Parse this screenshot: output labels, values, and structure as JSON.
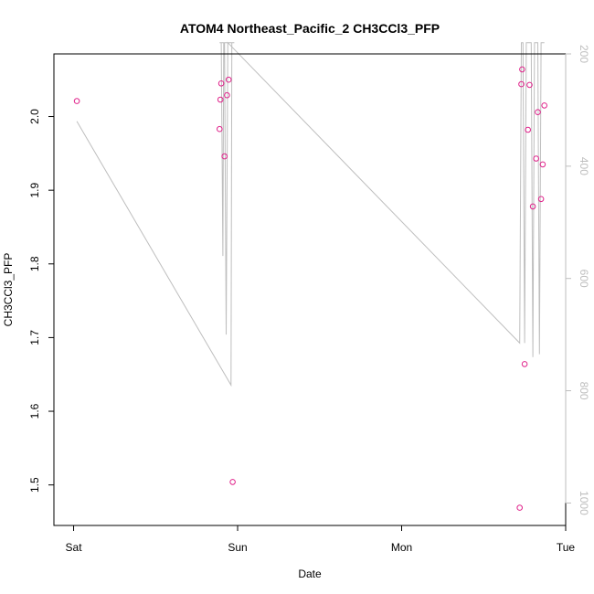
{
  "chart_data": {
    "type": "scatter",
    "title": "ATOM4 Northeast_Pacific_2 CH3CCl3_PFP",
    "xlabel": "Date",
    "ylabel": "CH3CCl3_PFP",
    "x_axis": {
      "ticks": [
        {
          "value": 0,
          "label": "Sat"
        },
        {
          "value": 1,
          "label": "Sun"
        },
        {
          "value": 2,
          "label": "Mon"
        },
        {
          "value": 3,
          "label": "Tue"
        }
      ],
      "lim": [
        -0.12,
        3.0
      ]
    },
    "y_left": {
      "lim": [
        1.445,
        2.085
      ],
      "ticks": [
        1.5,
        1.6,
        1.7,
        1.8,
        1.9,
        2.0
      ],
      "tick_labels": [
        "1.5",
        "1.6",
        "1.7",
        "1.8",
        "1.9",
        "2.0"
      ]
    },
    "y_right": {
      "reversed": true,
      "lim": [
        200,
        1040
      ],
      "ticks": [
        200,
        400,
        600,
        800,
        1000
      ],
      "tick_labels": [
        "200",
        "400",
        "600",
        "800",
        "1000"
      ],
      "color": "#bebebe"
    },
    "series": [
      {
        "kind": "points",
        "axis": "left",
        "color": "#e0218a",
        "marker": "open-circle",
        "x": [
          0.02,
          0.89,
          0.895,
          0.9,
          0.92,
          0.935,
          0.945,
          0.97,
          2.72,
          2.73,
          2.735,
          2.75,
          2.77,
          2.78,
          2.8,
          2.82,
          2.83,
          2.85,
          2.86,
          2.87
        ],
        "y": [
          2.021,
          1.983,
          2.023,
          2.045,
          1.946,
          2.029,
          2.05,
          1.504,
          1.469,
          2.044,
          2.064,
          1.664,
          1.982,
          2.043,
          1.878,
          1.943,
          2.006,
          1.888,
          1.935,
          2.015
        ]
      },
      {
        "kind": "line",
        "axis": "right",
        "color": "#bebebe",
        "x": [
          0.02,
          0.96,
          0.965,
          0.98,
          0.89,
          0.9,
          0.91,
          0.915,
          0.92,
          0.93,
          0.94,
          2.72,
          2.73,
          2.74,
          2.75,
          2.76,
          2.77,
          2.78,
          2.79,
          2.8,
          2.81,
          2.82,
          2.83,
          2.84,
          2.85,
          2.86,
          2.87
        ],
        "y": [
          320,
          790,
          180,
          180,
          180,
          180,
          560,
          180,
          180,
          700,
          180,
          715,
          180,
          180,
          715,
          180,
          180,
          180,
          180,
          740,
          180,
          180,
          180,
          735,
          180,
          180,
          180
        ]
      }
    ]
  }
}
